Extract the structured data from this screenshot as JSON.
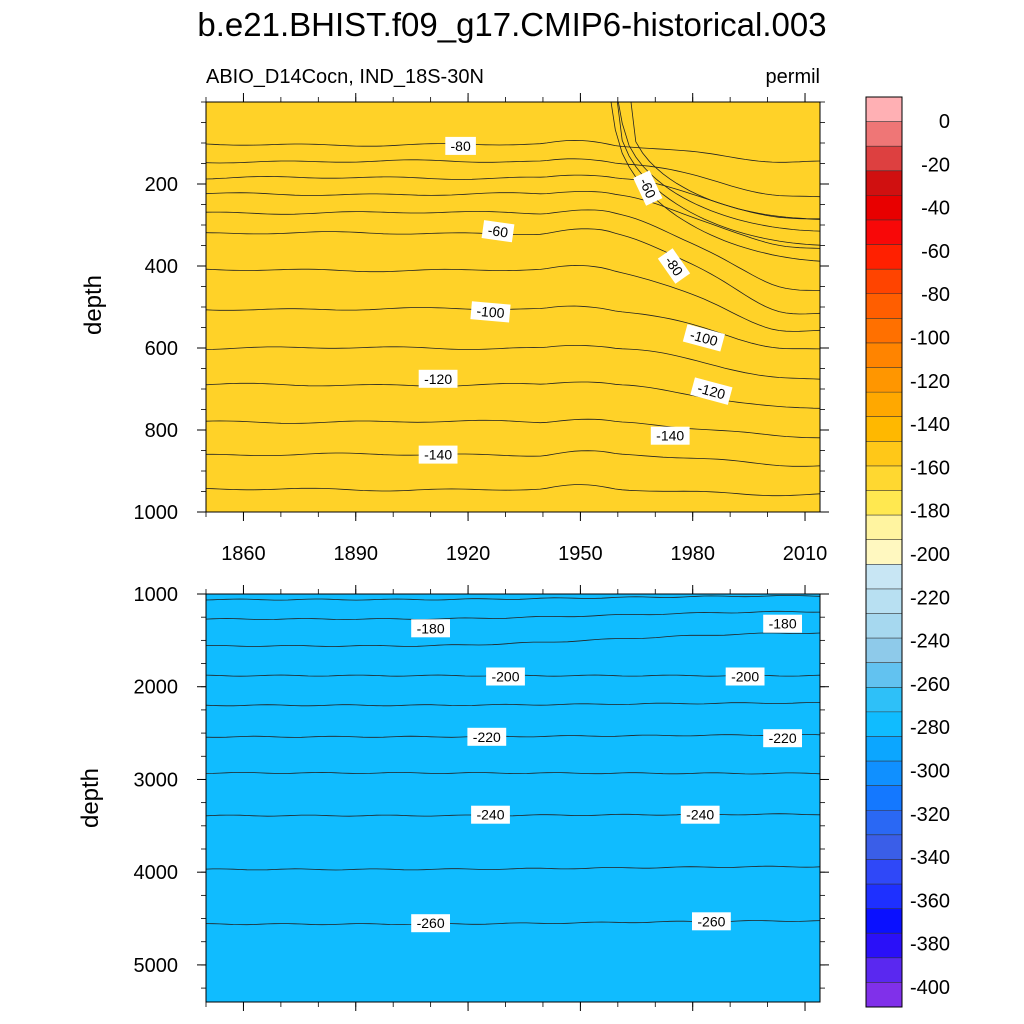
{
  "title": "b.e21.BHIST.f09_g17.CMIP6-historical.003",
  "chart_data": {
    "type": "contour",
    "variable_label": "ABIO_D14Cocn, IND_18S-30N",
    "units_label": "permil",
    "xlabel": "",
    "ylabel": "depth",
    "x_ticks": [
      "1860",
      "1890",
      "1920",
      "1950",
      "1980",
      "2010"
    ],
    "x_range": [
      1850,
      2014
    ],
    "top_panel": {
      "ylim": [
        0,
        1000
      ],
      "y_ticks": [
        "200",
        "400",
        "600",
        "800",
        "1000"
      ],
      "contour_labels": [
        "-60",
        "-60",
        "-80",
        "-80",
        "-100",
        "-100",
        "-120",
        "-120",
        "-140",
        "-140"
      ]
    },
    "bottom_panel": {
      "ylim": [
        1000,
        5400
      ],
      "y_ticks": [
        "1000",
        "2000",
        "3000",
        "4000",
        "5000"
      ],
      "contour_labels": [
        "-180",
        "-180",
        "-200",
        "-200",
        "-220",
        "-220",
        "-240",
        "-240",
        "-260",
        "-260"
      ]
    },
    "colorbar": {
      "labels": [
        "0",
        "-20",
        "-40",
        "-60",
        "-80",
        "-100",
        "-120",
        "-140",
        "-160",
        "-180",
        "-200",
        "-220",
        "-240",
        "-260",
        "-280",
        "-300",
        "-320",
        "-340",
        "-360",
        "-380",
        "-400"
      ],
      "colors": [
        "#ffb0b4",
        "#ef7676",
        "#dd4040",
        "#d01010",
        "#e80000",
        "#f80808",
        "#ff2000",
        "#ff4400",
        "#ff5e00",
        "#ff7000",
        "#ff8400",
        "#ff9600",
        "#ffa800",
        "#ffb800",
        "#ffc818",
        "#ffd830",
        "#ffe850",
        "#fff4a0",
        "#fff8c0",
        "#c8e6f4",
        "#b8e0f2",
        "#a6d8ef",
        "#8ecaea",
        "#62c2f0",
        "#2ec0f8",
        "#10bcff",
        "#0ca6ff",
        "#1090ff",
        "#1478ff",
        "#2a68f4",
        "#3a5ee8",
        "#2f48f8",
        "#1e30ff",
        "#0a10ff",
        "#2a10f8",
        "#5a28f0",
        "#8030ea"
      ]
    },
    "fill_colors": {
      "top_levels": [
        "#ffb0b4",
        "#ef7676",
        "#dd4040",
        "#d01010",
        "#e80000",
        "#f40000",
        "#ff1000",
        "#ff2a00",
        "#ff4400",
        "#ff5e00",
        "#ff7000",
        "#ff8400",
        "#ff9600",
        "#ffa400",
        "#ffb400",
        "#ffc418",
        "#ffd228",
        "#ffdc30"
      ],
      "bottom_levels": [
        "#ffe040",
        "#fff090",
        "#fff8b8",
        "#c8e6f4",
        "#aedcf0",
        "#9ad0ec",
        "#84c6ea",
        "#62c2f0",
        "#3cc2f8",
        "#10bcff"
      ]
    }
  }
}
